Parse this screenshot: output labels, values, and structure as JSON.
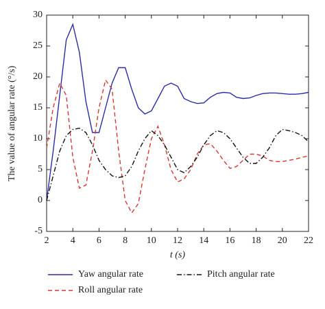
{
  "chart_data": {
    "type": "line",
    "xlabel": "t (s)",
    "ylabel": "The value of angular rate (°/s)",
    "x": [
      2,
      2.5,
      3,
      3.5,
      4,
      4.5,
      5,
      5.5,
      6,
      6.5,
      7,
      7.5,
      8,
      8.5,
      9,
      9.5,
      10,
      10.5,
      11,
      11.5,
      12,
      12.5,
      13,
      13.5,
      14,
      14.5,
      15,
      15.5,
      16,
      16.5,
      17,
      17.5,
      18,
      18.5,
      19,
      19.5,
      20,
      20.5,
      21,
      21.5,
      22
    ],
    "series": [
      {
        "name": "Yaw angular rate",
        "color": "#2b2ba6",
        "dash": "solid",
        "values": [
          0,
          8,
          17,
          26,
          28.5,
          24,
          16,
          11,
          11,
          15,
          19,
          21.5,
          21.5,
          18,
          15,
          14,
          14.5,
          16.5,
          18.5,
          19,
          18.5,
          16.5,
          16,
          15.7,
          15.8,
          16.7,
          17.3,
          17.5,
          17.4,
          16.7,
          16.5,
          16.6,
          17,
          17.3,
          17.4,
          17.4,
          17.3,
          17.2,
          17.2,
          17.3,
          17.5
        ]
      },
      {
        "name": "Roll angular rate",
        "color": "#d93630",
        "dash": "dashed",
        "values": [
          8.5,
          15,
          19,
          17,
          7,
          2,
          2.5,
          8,
          15,
          19.5,
          18,
          8,
          0,
          -2,
          -0.5,
          5,
          10,
          12,
          9,
          5,
          3,
          3.5,
          5,
          7.5,
          9,
          9.2,
          8,
          6.5,
          5.2,
          5.5,
          6.5,
          7.5,
          7.5,
          7.2,
          6.5,
          6.3,
          6.3,
          6.5,
          6.7,
          7,
          7.2
        ]
      },
      {
        "name": "Pitch angular rate",
        "color": "#111111",
        "dash": "dashdot",
        "values": [
          0,
          4,
          8,
          10.5,
          11.5,
          11.7,
          11,
          9,
          6.5,
          5,
          4,
          3.7,
          4,
          5.5,
          8,
          10,
          11.3,
          10.5,
          9,
          7,
          5,
          4.5,
          5.5,
          7,
          9,
          10.5,
          11.3,
          11,
          10,
          8.5,
          7,
          6,
          6,
          7,
          8.5,
          10.5,
          11.5,
          11.3,
          11,
          10.5,
          9.5
        ]
      }
    ],
    "xlim": [
      2,
      22
    ],
    "xticks": [
      2,
      4,
      6,
      8,
      10,
      12,
      14,
      16,
      18,
      20,
      22
    ],
    "ylim": [
      -5,
      30
    ],
    "yticks": [
      -5,
      0,
      5,
      10,
      15,
      20,
      25,
      30
    ],
    "grid": false,
    "legend": "bottom"
  }
}
